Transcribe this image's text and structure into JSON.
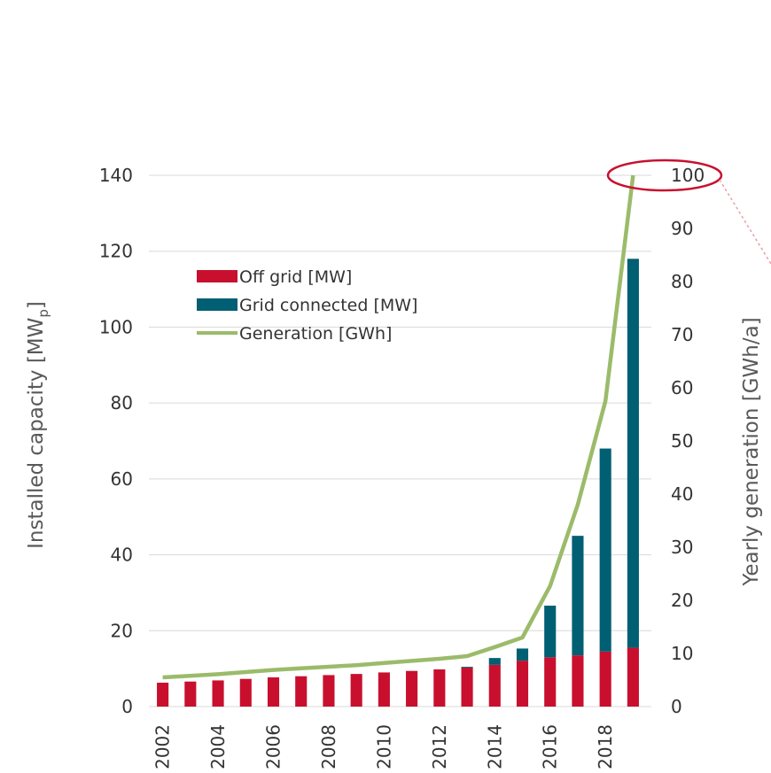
{
  "chart_data": {
    "type": "bar",
    "categories": [
      "2002",
      "2003",
      "2004",
      "2005",
      "2006",
      "2007",
      "2008",
      "2009",
      "2010",
      "2011",
      "2012",
      "2013",
      "2014",
      "2015",
      "2016",
      "2017",
      "2018",
      "2019"
    ],
    "x_tick_labels": [
      "2002",
      "2004",
      "2006",
      "2008",
      "2010",
      "2012",
      "2014",
      "2016",
      "2018"
    ],
    "series": [
      {
        "name": "Off grid [MW]",
        "type": "stacked-bar",
        "axis": "left",
        "color": "#c8102e",
        "values": [
          6.3,
          6.6,
          6.9,
          7.3,
          7.7,
          8.0,
          8.3,
          8.6,
          9.0,
          9.4,
          9.8,
          10.3,
          11.0,
          12.1,
          13.0,
          13.5,
          14.5,
          15.5
        ]
      },
      {
        "name": "Grid connected [MW]",
        "type": "stacked-bar",
        "axis": "left",
        "color": "#005f73",
        "values": [
          0,
          0,
          0,
          0,
          0,
          0,
          0,
          0,
          0,
          0,
          0,
          0.2,
          1.8,
          3.2,
          13.6,
          31.5,
          53.5,
          102.5
        ]
      },
      {
        "name": "Generation [GWh]",
        "type": "line",
        "axis": "right",
        "color": "#9bbb6a",
        "values": [
          5.5,
          5.8,
          6.1,
          6.5,
          6.9,
          7.2,
          7.5,
          7.8,
          8.2,
          8.6,
          9.0,
          9.5,
          11.2,
          13.0,
          22.7,
          38.0,
          57.5,
          100
        ]
      }
    ],
    "ylabel_left": "Installed capacity  [MW",
    "ylabel_left_sub": "p",
    "ylabel_left_end": "]",
    "ylabel_right": "Yearly generation [GWh/a]",
    "ylim_left": [
      0,
      140
    ],
    "yticks_left": [
      "0",
      "20",
      "40",
      "60",
      "80",
      "100",
      "120",
      "140"
    ],
    "ylim_right": [
      0,
      100
    ],
    "yticks_right": [
      "0",
      "10",
      "20",
      "30",
      "40",
      "50",
      "60",
      "70",
      "80",
      "90",
      "100"
    ],
    "grid": true,
    "legend_position": "top-left",
    "annotation": {
      "type": "ellipse",
      "target": "100 tick on right axis",
      "color": "#c8102e"
    }
  }
}
